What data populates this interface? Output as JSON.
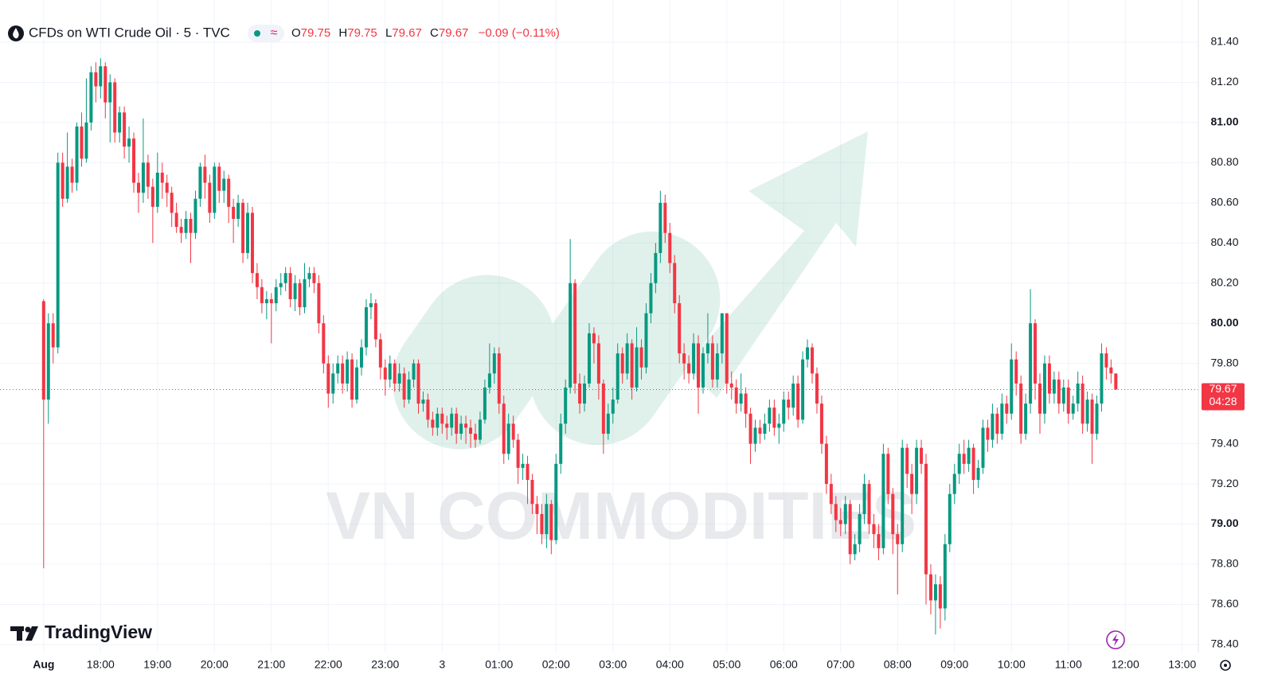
{
  "chart_data": {
    "type": "candlestick",
    "symbol": "CFDs on WTI Crude Oil · 5 · TVC",
    "header": {
      "o_label": "O",
      "open": 79.75,
      "h_label": "H",
      "high": 79.75,
      "l_label": "L",
      "low": 79.67,
      "c_label": "C",
      "close": 79.67,
      "change": "−0.09 (−0.11%)"
    },
    "up_color": "#089981",
    "down_color": "#f23645",
    "grid": true,
    "ylim": [
      78.36,
      81.61
    ],
    "yticks": [
      {
        "value": 81.4,
        "label": "81.40"
      },
      {
        "value": 81.2,
        "label": "81.20"
      },
      {
        "value": 81,
        "label": "81.00"
      },
      {
        "value": 80.8,
        "label": "80.80"
      },
      {
        "value": 80.6,
        "label": "80.60"
      },
      {
        "value": 80.4,
        "label": "80.40"
      },
      {
        "value": 80.2,
        "label": "80.20"
      },
      {
        "value": 80,
        "label": "80.00"
      },
      {
        "value": 79.8,
        "label": "79.80"
      },
      {
        "value": 79.4,
        "label": "79.40"
      },
      {
        "value": 79.2,
        "label": "79.20"
      },
      {
        "value": 79,
        "label": "79.00"
      },
      {
        "value": 78.8,
        "label": "78.80"
      },
      {
        "value": 78.6,
        "label": "78.60"
      },
      {
        "value": 78.4,
        "label": "78.40"
      }
    ],
    "xlim": [
      -9.2,
      243.4
    ],
    "xticks": [
      {
        "value": 0,
        "label": "Aug"
      },
      {
        "value": 12,
        "label": "18:00"
      },
      {
        "value": 24,
        "label": "19:00"
      },
      {
        "value": 36,
        "label": "20:00"
      },
      {
        "value": 48,
        "label": "21:00"
      },
      {
        "value": 60,
        "label": "22:00"
      },
      {
        "value": 72,
        "label": "23:00"
      },
      {
        "value": 84,
        "label": "3"
      },
      {
        "value": 96,
        "label": "01:00"
      },
      {
        "value": 108,
        "label": "02:00"
      },
      {
        "value": 120,
        "label": "03:00"
      },
      {
        "value": 132,
        "label": "04:00"
      },
      {
        "value": 144,
        "label": "05:00"
      },
      {
        "value": 156,
        "label": "06:00"
      },
      {
        "value": 168,
        "label": "07:00"
      },
      {
        "value": 180,
        "label": "08:00"
      },
      {
        "value": 192,
        "label": "09:00"
      },
      {
        "value": 204,
        "label": "10:00"
      },
      {
        "value": 216,
        "label": "11:00"
      },
      {
        "value": 228,
        "label": "12:00"
      },
      {
        "value": 240,
        "label": "13:00"
      }
    ],
    "current_price": {
      "value": 79.67,
      "countdown": "04:28"
    },
    "watermark": "VN COMMODITIES",
    "brand": "TradingView",
    "open": [
      80.11,
      79.62,
      80.0,
      79.88,
      80.8,
      80.62,
      80.78,
      80.7,
      80.98,
      80.82,
      81.0,
      81.25,
      81.18,
      81.28,
      81.1,
      81.2,
      80.95,
      81.05,
      80.88,
      80.92,
      80.7,
      80.65,
      80.8,
      80.68,
      80.58,
      80.75,
      80.7,
      80.65,
      80.55,
      80.48,
      80.45,
      80.52,
      80.45,
      80.62,
      80.78,
      80.7,
      80.55,
      80.78,
      80.66,
      80.72,
      80.58,
      80.52,
      80.6,
      80.35,
      80.55,
      80.25,
      80.18,
      80.1,
      80.12,
      80.1,
      80.18,
      80.2,
      80.25,
      80.12,
      80.2,
      80.08,
      80.22,
      80.25,
      80.2,
      80.0,
      79.8,
      79.65,
      79.75,
      79.8,
      79.7,
      79.82,
      79.62,
      79.78,
      79.88,
      80.08,
      80.1,
      79.92,
      79.78,
      79.72,
      79.8,
      79.7,
      79.75,
      79.62,
      79.72,
      79.8,
      79.6,
      79.62,
      79.52,
      79.48,
      79.55,
      79.5,
      79.48,
      79.55,
      79.45,
      79.5,
      79.48,
      79.45,
      79.42,
      79.52,
      79.68,
      79.75,
      79.85,
      79.6,
      79.35,
      79.5,
      79.42,
      79.28,
      79.3,
      79.22,
      79.1,
      79.05,
      78.95,
      79.1,
      78.92,
      79.3,
      79.5,
      79.68,
      80.2,
      79.7,
      79.6,
      79.7,
      79.95,
      79.9,
      79.7,
      79.45,
      79.55,
      79.62,
      79.85,
      79.75,
      79.9,
      79.68,
      79.88,
      79.78,
      80.05,
      80.2,
      80.35,
      80.6,
      80.45,
      80.3,
      80.1,
      79.85,
      79.8,
      79.75,
      79.9,
      79.68,
      79.85,
      79.9,
      79.72,
      79.85,
      80.05,
      79.7,
      79.68,
      79.6,
      79.65,
      79.55,
      79.4,
      79.48,
      79.45,
      79.5,
      79.58,
      79.48,
      79.5,
      79.62,
      79.58,
      79.7,
      79.52,
      79.82,
      79.88,
      79.75,
      79.6,
      79.4,
      79.2,
      79.1,
      79.02,
      79.0,
      79.1,
      78.85,
      78.9,
      79.05,
      79.2,
      79.0,
      78.95,
      78.88,
      79.35,
      79.15,
      78.95,
      78.9,
      79.38,
      79.25,
      79.15,
      79.38,
      79.3,
      78.75,
      78.62,
      78.7,
      78.58,
      78.9,
      79.15,
      79.25,
      79.35,
      79.3,
      79.38,
      79.22,
      79.28,
      79.48,
      79.42,
      79.55,
      79.45,
      79.6,
      79.55,
      79.82,
      79.7,
      79.45,
      79.6,
      80.0,
      79.7,
      79.55,
      79.8,
      79.65,
      79.72,
      79.6,
      79.68,
      79.55,
      79.6,
      79.7,
      79.5,
      79.62,
      79.45,
      79.6,
      79.85,
      79.78,
      79.75
    ],
    "high": [
      80.12,
      80.05,
      80.05,
      80.85,
      80.85,
      80.95,
      80.82,
      81.0,
      81.05,
      81.22,
      81.28,
      81.3,
      81.32,
      81.3,
      81.24,
      81.22,
      81.08,
      81.08,
      80.98,
      80.95,
      80.75,
      81.02,
      80.84,
      80.72,
      80.85,
      80.8,
      80.74,
      80.68,
      80.6,
      80.52,
      80.56,
      80.55,
      80.66,
      80.8,
      80.84,
      80.74,
      80.8,
      80.8,
      80.76,
      80.74,
      80.62,
      80.64,
      80.62,
      80.6,
      80.58,
      80.3,
      80.22,
      80.16,
      80.15,
      80.22,
      80.25,
      80.28,
      80.28,
      80.24,
      80.22,
      80.3,
      80.28,
      80.28,
      80.24,
      80.04,
      79.84,
      79.8,
      79.84,
      79.84,
      79.86,
      79.85,
      79.82,
      79.92,
      80.12,
      80.15,
      80.12,
      79.95,
      79.82,
      79.84,
      79.82,
      79.8,
      79.78,
      79.76,
      79.82,
      79.82,
      79.66,
      79.65,
      79.56,
      79.58,
      79.58,
      79.54,
      79.58,
      79.58,
      79.54,
      79.54,
      79.52,
      79.5,
      79.56,
      79.72,
      79.9,
      79.88,
      79.88,
      79.64,
      79.55,
      79.54,
      79.45,
      79.35,
      79.34,
      79.25,
      79.14,
      79.1,
      79.15,
      79.12,
      79.35,
      79.55,
      79.72,
      80.42,
      80.22,
      79.75,
      79.74,
      80.0,
      79.98,
      79.94,
      79.72,
      79.6,
      79.68,
      79.9,
      79.88,
      79.95,
      79.92,
      79.98,
      79.92,
      80.1,
      80.25,
      80.4,
      80.66,
      80.64,
      80.5,
      80.34,
      80.14,
      79.9,
      79.84,
      79.95,
      79.94,
      79.88,
      80.05,
      79.94,
      79.9,
      80.05,
      80.05,
      79.76,
      79.72,
      79.75,
      79.68,
      79.58,
      79.52,
      79.52,
      79.55,
      79.62,
      79.62,
      79.55,
      79.66,
      79.66,
      79.74,
      79.74,
      79.86,
      79.92,
      79.9,
      79.78,
      79.64,
      79.44,
      79.25,
      79.14,
      79.08,
      79.14,
      79.12,
      78.95,
      79.1,
      79.25,
      79.22,
      79.05,
      79.0,
      79.4,
      79.38,
      79.18,
      79.0,
      79.42,
      79.4,
      79.3,
      79.42,
      79.42,
      79.35,
      78.8,
      78.75,
      78.74,
      78.95,
      79.2,
      79.3,
      79.4,
      79.42,
      79.42,
      79.4,
      79.32,
      79.52,
      79.52,
      79.6,
      79.58,
      79.65,
      79.64,
      79.9,
      79.86,
      79.74,
      79.65,
      80.17,
      80.02,
      79.75,
      79.84,
      79.84,
      79.76,
      79.76,
      79.72,
      79.72,
      79.64,
      79.76,
      79.74,
      79.66,
      79.65,
      79.64,
      79.9,
      79.88,
      79.82,
      79.75
    ],
    "low": [
      78.78,
      79.5,
      79.8,
      79.85,
      80.58,
      80.6,
      80.65,
      80.66,
      80.78,
      80.8,
      80.96,
      81.1,
      81.12,
      81.02,
      80.9,
      80.9,
      80.9,
      80.82,
      80.8,
      80.65,
      80.55,
      80.6,
      80.62,
      80.4,
      80.55,
      80.62,
      80.58,
      80.48,
      80.45,
      80.4,
      80.42,
      80.3,
      80.42,
      80.58,
      80.62,
      80.5,
      80.52,
      80.6,
      80.6,
      80.5,
      80.4,
      80.48,
      80.3,
      80.32,
      80.2,
      80.12,
      80.05,
      80.02,
      79.9,
      80.06,
      80.14,
      80.16,
      80.08,
      80.06,
      80.04,
      80.05,
      80.18,
      80.15,
      79.95,
      79.75,
      79.58,
      79.6,
      79.7,
      79.65,
      79.66,
      79.58,
      79.6,
      79.74,
      79.84,
      80.02,
      79.88,
      79.72,
      79.64,
      79.68,
      79.66,
      79.66,
      79.58,
      79.6,
      79.68,
      79.55,
      79.56,
      79.48,
      79.44,
      79.44,
      79.45,
      79.42,
      79.44,
      79.4,
      79.42,
      79.4,
      79.38,
      79.38,
      79.4,
      79.5,
      79.65,
      79.7,
      79.55,
      79.3,
      79.32,
      79.38,
      79.2,
      79.22,
      79.1,
      79.05,
      78.95,
      78.9,
      78.88,
      78.85,
      78.9,
      79.25,
      79.45,
      79.65,
      79.65,
      79.55,
      79.56,
      79.68,
      79.8,
      79.62,
      79.35,
      79.42,
      79.5,
      79.6,
      79.7,
      79.72,
      79.62,
      79.66,
      79.72,
      79.75,
      80.0,
      80.15,
      80.3,
      80.4,
      80.25,
      80.05,
      79.8,
      79.72,
      79.7,
      79.72,
      79.55,
      79.65,
      79.8,
      79.68,
      79.68,
      79.8,
      79.65,
      79.62,
      79.55,
      79.56,
      79.48,
      79.3,
      79.36,
      79.4,
      79.42,
      79.46,
      79.44,
      79.4,
      79.46,
      79.52,
      79.54,
      79.48,
      79.5,
      79.78,
      79.7,
      79.55,
      79.35,
      79.15,
      79.05,
      78.96,
      78.94,
      78.95,
      78.8,
      78.82,
      78.86,
      79.0,
      78.95,
      78.88,
      78.82,
      78.85,
      79.1,
      78.85,
      78.65,
      78.86,
      79.18,
      79.05,
      79.1,
      79.25,
      78.6,
      78.55,
      78.45,
      78.48,
      78.52,
      78.86,
      79.1,
      79.2,
      79.25,
      79.26,
      79.15,
      79.18,
      79.25,
      79.36,
      79.38,
      79.4,
      79.42,
      79.5,
      79.52,
      79.64,
      79.4,
      79.42,
      79.55,
      79.62,
      79.45,
      79.5,
      79.6,
      79.6,
      79.55,
      79.56,
      79.5,
      79.52,
      79.56,
      79.45,
      79.46,
      79.3,
      79.42,
      79.56,
      79.72,
      79.7,
      79.67
    ],
    "close": [
      79.62,
      80.0,
      79.88,
      80.8,
      80.62,
      80.78,
      80.7,
      80.98,
      80.82,
      81.0,
      81.25,
      81.18,
      81.28,
      81.1,
      81.2,
      80.95,
      81.05,
      80.88,
      80.92,
      80.7,
      80.65,
      80.8,
      80.68,
      80.58,
      80.75,
      80.7,
      80.65,
      80.55,
      80.48,
      80.45,
      80.52,
      80.45,
      80.62,
      80.78,
      80.7,
      80.55,
      80.78,
      80.66,
      80.72,
      80.58,
      80.52,
      80.6,
      80.35,
      80.55,
      80.25,
      80.18,
      80.1,
      80.12,
      80.1,
      80.18,
      80.2,
      80.25,
      80.12,
      80.2,
      80.08,
      80.22,
      80.25,
      80.2,
      80.0,
      79.8,
      79.65,
      79.75,
      79.8,
      79.7,
      79.82,
      79.62,
      79.78,
      79.88,
      80.08,
      80.1,
      79.92,
      79.78,
      79.72,
      79.8,
      79.7,
      79.75,
      79.62,
      79.72,
      79.8,
      79.6,
      79.62,
      79.52,
      79.48,
      79.55,
      79.5,
      79.48,
      79.55,
      79.45,
      79.5,
      79.48,
      79.45,
      79.42,
      79.52,
      79.68,
      79.75,
      79.85,
      79.6,
      79.35,
      79.5,
      79.42,
      79.28,
      79.3,
      79.22,
      79.1,
      79.05,
      78.95,
      79.1,
      78.92,
      79.3,
      79.5,
      79.68,
      80.2,
      79.7,
      79.6,
      79.7,
      79.95,
      79.9,
      79.7,
      79.45,
      79.55,
      79.62,
      79.85,
      79.75,
      79.9,
      79.68,
      79.88,
      79.78,
      80.05,
      80.2,
      80.35,
      80.6,
      80.45,
      80.3,
      80.1,
      79.85,
      79.8,
      79.75,
      79.9,
      79.68,
      79.85,
      79.9,
      79.72,
      79.85,
      80.05,
      79.7,
      79.68,
      79.6,
      79.65,
      79.55,
      79.4,
      79.48,
      79.45,
      79.5,
      79.58,
      79.48,
      79.5,
      79.62,
      79.58,
      79.7,
      79.52,
      79.82,
      79.88,
      79.75,
      79.6,
      79.4,
      79.2,
      79.1,
      79.02,
      79.0,
      79.1,
      78.85,
      78.9,
      79.05,
      79.2,
      79.0,
      78.95,
      78.88,
      79.35,
      79.15,
      78.95,
      78.9,
      79.38,
      79.25,
      79.15,
      79.38,
      79.3,
      78.75,
      78.62,
      78.7,
      78.58,
      78.9,
      79.15,
      79.25,
      79.35,
      79.3,
      79.38,
      79.22,
      79.28,
      79.48,
      79.42,
      79.55,
      79.45,
      79.6,
      79.55,
      79.82,
      79.7,
      79.45,
      79.6,
      80.0,
      79.7,
      79.55,
      79.8,
      79.65,
      79.72,
      79.6,
      79.68,
      79.55,
      79.6,
      79.7,
      79.5,
      79.62,
      79.45,
      79.6,
      79.85,
      79.78,
      79.75,
      79.67
    ]
  }
}
